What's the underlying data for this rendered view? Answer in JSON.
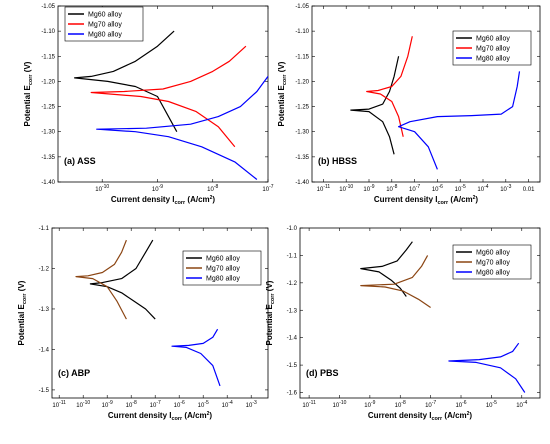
{
  "chart_data": [
    {
      "type": "line",
      "panel_label": "(a) ASS",
      "xlabel": {
        "main": "Current density I",
        "sub": "corr",
        "unit": " (A/cm",
        "sup": "2",
        "close": ")"
      },
      "ylabel": {
        "main": "Potential E",
        "sub": "corr",
        "unit": " (V)"
      },
      "x_log": true,
      "xlim": [
        -10.8,
        -7.0
      ],
      "ylim": [
        -1.4,
        -1.05
      ],
      "x_ticks": [
        {
          "v": -10,
          "label": "10"
        },
        {
          "v": -9,
          "label": "10"
        },
        {
          "v": -8,
          "label": "10"
        },
        {
          "v": -7,
          "label": "10"
        }
      ],
      "x_tick_exps": [
        "-10",
        "-9",
        "-8",
        "-7"
      ],
      "y_ticks": [
        -1.4,
        -1.35,
        -1.3,
        -1.25,
        -1.2,
        -1.15,
        -1.1,
        -1.05
      ],
      "y_tick_labels": [
        "-1.40",
        "-1.35",
        "-1.30",
        "-1.25",
        "-1.20",
        "-1.15",
        "-1.10",
        "-1.05"
      ],
      "legend": "top-left",
      "series": [
        {
          "name": "Mg60 alloy",
          "color": "#000000",
          "x": [
            -8.7,
            -9.0,
            -9.4,
            -9.8,
            -10.2,
            -10.5,
            -9.9,
            -9.4,
            -9.0,
            -8.8,
            -8.65
          ],
          "y": [
            -1.1,
            -1.13,
            -1.16,
            -1.18,
            -1.19,
            -1.193,
            -1.2,
            -1.21,
            -1.23,
            -1.27,
            -1.3
          ]
        },
        {
          "name": "Mg70 alloy",
          "color": "#ff0000",
          "x": [
            -7.4,
            -7.7,
            -8.0,
            -8.4,
            -8.9,
            -9.6,
            -10.2,
            -9.3,
            -8.8,
            -8.3,
            -7.9,
            -7.6
          ],
          "y": [
            -1.13,
            -1.16,
            -1.18,
            -1.2,
            -1.215,
            -1.22,
            -1.222,
            -1.23,
            -1.24,
            -1.26,
            -1.29,
            -1.33
          ]
        },
        {
          "name": "Mg80 alloy",
          "color": "#0000ff",
          "x": [
            -7.0,
            -7.2,
            -7.5,
            -7.9,
            -8.4,
            -9.2,
            -10.1,
            -9.4,
            -8.8,
            -8.2,
            -7.6,
            -7.2
          ],
          "y": [
            -1.19,
            -1.22,
            -1.25,
            -1.27,
            -1.285,
            -1.293,
            -1.295,
            -1.3,
            -1.31,
            -1.33,
            -1.36,
            -1.395
          ]
        }
      ]
    },
    {
      "type": "line",
      "panel_label": "(b) HBSS",
      "xlabel": {
        "main": "Current density I",
        "sub": "corr",
        "unit": " (A/cm",
        "sup": "2",
        "close": ")"
      },
      "ylabel": {
        "main": "Potential E",
        "sub": "corr",
        "unit": " (V)"
      },
      "x_log": true,
      "xlim": [
        -11.5,
        -1.5
      ],
      "ylim": [
        -1.4,
        -1.05
      ],
      "x_ticks": [
        {
          "v": -11,
          "label": "10"
        },
        {
          "v": -10,
          "label": "10"
        },
        {
          "v": -9,
          "label": "10"
        },
        {
          "v": -8,
          "label": "10"
        },
        {
          "v": -7,
          "label": "10"
        },
        {
          "v": -6,
          "label": "10"
        },
        {
          "v": -5,
          "label": "10"
        },
        {
          "v": -4,
          "label": "10"
        },
        {
          "v": -3,
          "label": "10"
        },
        {
          "v": -2,
          "label": "0.01"
        }
      ],
      "x_tick_exps": [
        "-11",
        "-10",
        "-9",
        "-8",
        "-7",
        "-6",
        "-5",
        "-4",
        "-3",
        ""
      ],
      "y_ticks": [
        -1.4,
        -1.35,
        -1.3,
        -1.25,
        -1.2,
        -1.15,
        -1.1,
        -1.05
      ],
      "y_tick_labels": [
        "-1.40",
        "-1.35",
        "-1.30",
        "-1.25",
        "-1.20",
        "-1.15",
        "-1.10",
        "-1.05"
      ],
      "legend": "top-right",
      "series": [
        {
          "name": "Mg60 alloy",
          "color": "#000000",
          "x": [
            -7.7,
            -7.9,
            -8.1,
            -8.4,
            -9.0,
            -9.8,
            -9.0,
            -8.4,
            -8.1,
            -7.9
          ],
          "y": [
            -1.15,
            -1.19,
            -1.22,
            -1.245,
            -1.255,
            -1.257,
            -1.26,
            -1.28,
            -1.31,
            -1.345
          ]
        },
        {
          "name": "Mg70 alloy",
          "color": "#ff0000",
          "x": [
            -7.1,
            -7.3,
            -7.6,
            -8.0,
            -8.6,
            -9.1,
            -8.5,
            -8.0,
            -7.7,
            -7.5
          ],
          "y": [
            -1.11,
            -1.15,
            -1.19,
            -1.21,
            -1.218,
            -1.22,
            -1.225,
            -1.24,
            -1.27,
            -1.31
          ]
        },
        {
          "name": "Mg80 alloy",
          "color": "#0000ff",
          "x": [
            -2.4,
            -2.5,
            -2.7,
            -3.2,
            -4.5,
            -6.0,
            -7.2,
            -7.7,
            -7.0,
            -6.4,
            -6.0
          ],
          "y": [
            -1.18,
            -1.21,
            -1.25,
            -1.265,
            -1.268,
            -1.27,
            -1.28,
            -1.29,
            -1.3,
            -1.33,
            -1.375
          ]
        }
      ]
    },
    {
      "type": "line",
      "panel_label": "(c) ABP",
      "xlabel": {
        "main": "Current density I",
        "sub": "corr",
        "unit": " (A/cm",
        "sup": "2",
        "close": ")"
      },
      "ylabel": {
        "main": "Potential E",
        "sub": "corr",
        "unit": " (V)"
      },
      "x_log": true,
      "xlim": [
        -11.3,
        -2.3
      ],
      "ylim": [
        -1.52,
        -1.1
      ],
      "x_ticks": [
        {
          "v": -11,
          "label": "10"
        },
        {
          "v": -10,
          "label": "10"
        },
        {
          "v": -9,
          "label": "10"
        },
        {
          "v": -8,
          "label": "10"
        },
        {
          "v": -7,
          "label": "10"
        },
        {
          "v": -6,
          "label": "10"
        },
        {
          "v": -5,
          "label": "10"
        },
        {
          "v": -4,
          "label": "10"
        },
        {
          "v": -3,
          "label": "10"
        }
      ],
      "x_tick_exps": [
        "-11",
        "-10",
        "-9",
        "-8",
        "-7",
        "-6",
        "-5",
        "-4",
        "-3"
      ],
      "y_ticks": [
        -1.5,
        -1.4,
        -1.3,
        -1.2,
        -1.1
      ],
      "y_tick_labels": [
        "-1.5",
        "-1.4",
        "-1.3",
        "-1.2",
        "-1.1"
      ],
      "legend": "top-right",
      "series": [
        {
          "name": "Mg60 alloy",
          "color": "#000000",
          "x": [
            -7.1,
            -7.4,
            -7.8,
            -8.4,
            -9.2,
            -9.7,
            -9.0,
            -8.4,
            -7.9,
            -7.4,
            -7.0
          ],
          "y": [
            -1.13,
            -1.16,
            -1.2,
            -1.225,
            -1.235,
            -1.238,
            -1.245,
            -1.26,
            -1.28,
            -1.3,
            -1.325
          ]
        },
        {
          "name": "Mg70 alloy",
          "color": "#8b4513",
          "x": [
            -8.2,
            -8.4,
            -8.7,
            -9.2,
            -9.8,
            -10.3,
            -9.6,
            -9.0,
            -8.6,
            -8.2
          ],
          "y": [
            -1.13,
            -1.16,
            -1.19,
            -1.21,
            -1.218,
            -1.22,
            -1.225,
            -1.245,
            -1.28,
            -1.325
          ]
        },
        {
          "name": "Mg80 alloy",
          "color": "#0000ff",
          "x": [
            -4.4,
            -4.6,
            -5.0,
            -5.6,
            -6.3,
            -5.7,
            -5.1,
            -4.6,
            -4.3
          ],
          "y": [
            -1.35,
            -1.37,
            -1.385,
            -1.39,
            -1.392,
            -1.395,
            -1.41,
            -1.44,
            -1.49
          ]
        }
      ]
    },
    {
      "type": "line",
      "panel_label": "(d) PBS",
      "xlabel": {
        "main": "Current density I",
        "sub": "corr",
        "unit": " (A/cm",
        "sup": "2",
        "close": ")"
      },
      "ylabel": {
        "main": "Potential E",
        "sub": "corr",
        "unit": " (V)"
      },
      "x_log": true,
      "xlim": [
        -11.3,
        -3.4
      ],
      "ylim": [
        -1.62,
        -1.0
      ],
      "x_ticks": [
        {
          "v": -11,
          "label": "10"
        },
        {
          "v": -10,
          "label": "10"
        },
        {
          "v": -9,
          "label": "10"
        },
        {
          "v": -8,
          "label": "10"
        },
        {
          "v": -7,
          "label": "10"
        },
        {
          "v": -6,
          "label": "10"
        },
        {
          "v": -5,
          "label": "10"
        },
        {
          "v": -4,
          "label": "10"
        }
      ],
      "x_tick_exps": [
        "-11",
        "-10",
        "-9",
        "-8",
        "-7",
        "-6",
        "-5",
        "-4"
      ],
      "y_ticks": [
        -1.6,
        -1.5,
        -1.4,
        -1.3,
        -1.2,
        -1.1,
        -1.0
      ],
      "y_tick_labels": [
        "-1.6",
        "-1.5",
        "-1.4",
        "-1.3",
        "-1.2",
        "-1.1",
        "-1.0"
      ],
      "legend": "top-right",
      "series": [
        {
          "name": "Mg60 alloy",
          "color": "#000000",
          "x": [
            -7.6,
            -7.8,
            -8.1,
            -8.6,
            -9.3,
            -8.7,
            -8.3,
            -8.0,
            -7.8
          ],
          "y": [
            -1.05,
            -1.08,
            -1.12,
            -1.14,
            -1.148,
            -1.16,
            -1.19,
            -1.22,
            -1.25
          ]
        },
        {
          "name": "Mg70 alloy",
          "color": "#8b4513",
          "x": [
            -7.1,
            -7.3,
            -7.6,
            -8.2,
            -9.3,
            -8.5,
            -7.9,
            -7.4,
            -7.0
          ],
          "y": [
            -1.1,
            -1.14,
            -1.18,
            -1.205,
            -1.21,
            -1.215,
            -1.23,
            -1.26,
            -1.29
          ]
        },
        {
          "name": "Mg80 alloy",
          "color": "#0000ff",
          "x": [
            -4.1,
            -4.3,
            -4.7,
            -5.4,
            -6.4,
            -5.5,
            -4.7,
            -4.2,
            -3.9
          ],
          "y": [
            -1.42,
            -1.45,
            -1.47,
            -1.48,
            -1.485,
            -1.49,
            -1.51,
            -1.55,
            -1.6
          ]
        }
      ]
    }
  ]
}
